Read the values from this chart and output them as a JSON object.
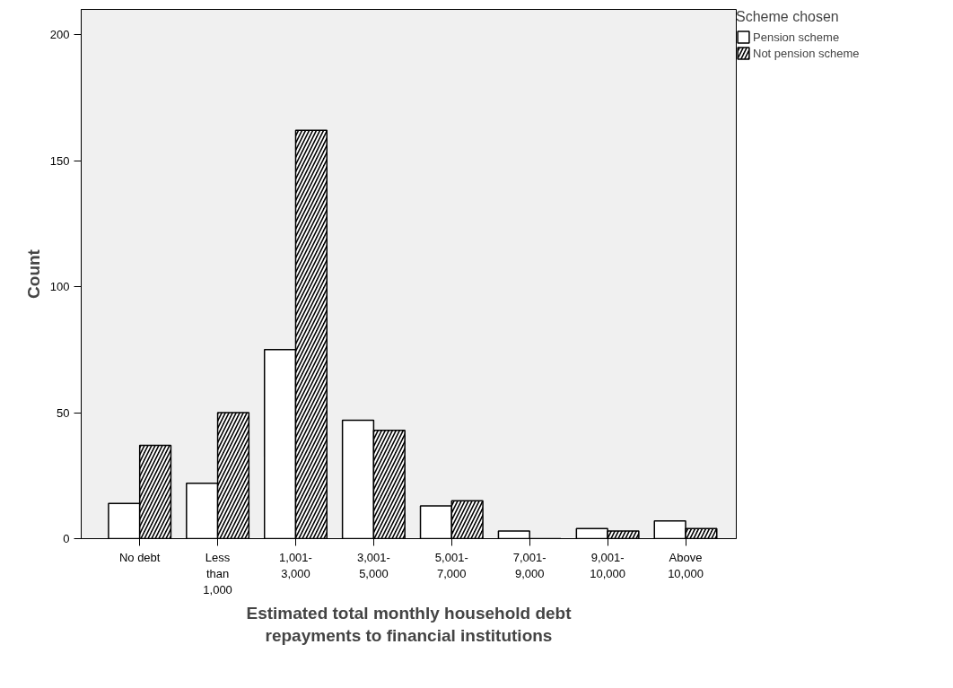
{
  "chart_data": {
    "type": "bar",
    "xlabel": "Estimated total monthly household debt repayments to financial institutions",
    "ylabel": "Count",
    "legend_title": "Scheme chosen",
    "categories": [
      "No debt",
      "Less than 1,000",
      "1,001-3,000",
      "3,001-5,000",
      "5,001-7,000",
      "7,001-9,000",
      "9,001-10,000",
      "Above 10,000"
    ],
    "series": [
      {
        "name": "Pension scheme",
        "color": "#ffffff",
        "values": [
          14,
          22,
          75,
          47,
          13,
          3,
          4,
          7
        ]
      },
      {
        "name": "Not pension scheme",
        "color": "#000000",
        "values": [
          37,
          50,
          162,
          43,
          15,
          0,
          3,
          4
        ]
      }
    ],
    "ylim": [
      0,
      210
    ],
    "yticks": [
      0,
      50,
      100,
      150,
      200
    ],
    "grid": false,
    "legend": "top right"
  }
}
